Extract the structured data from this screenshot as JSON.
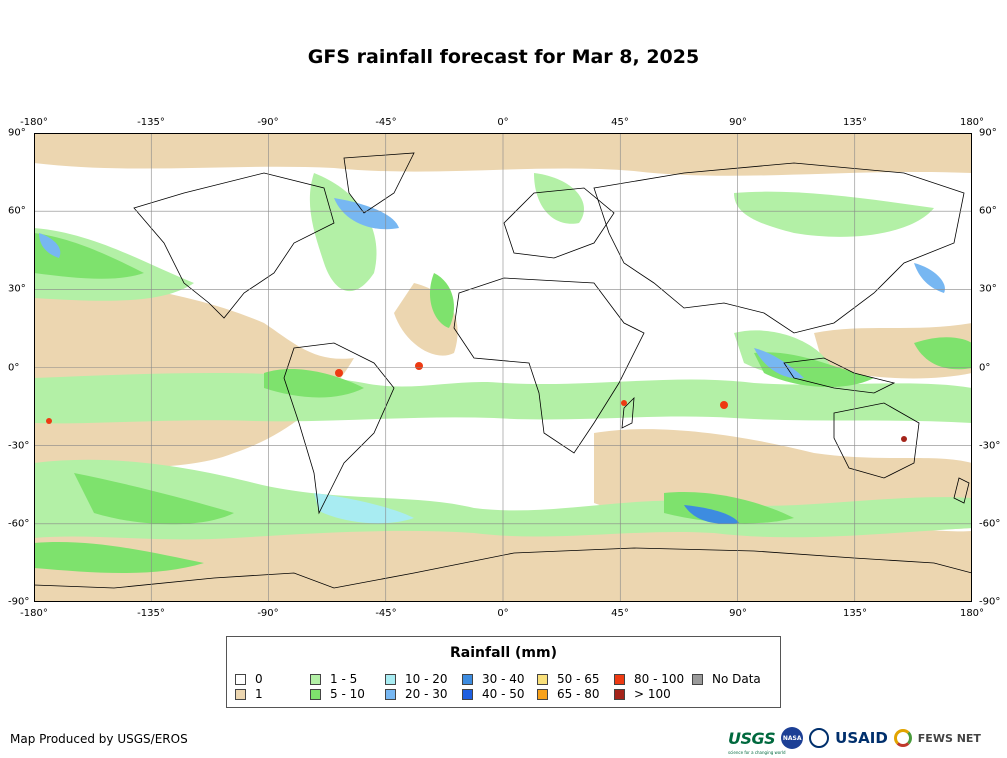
{
  "title": "GFS rainfall forecast for Mar 8, 2025",
  "axes": {
    "lon_ticks": [
      "-180°",
      "-135°",
      "-90°",
      "-45°",
      "0°",
      "45°",
      "90°",
      "135°",
      "180°"
    ],
    "lat_ticks": [
      "90°",
      "60°",
      "30°",
      "0°",
      "-30°",
      "-60°",
      "-90°"
    ]
  },
  "legend": {
    "title": "Rainfall (mm)",
    "items": [
      {
        "label": "0",
        "color": "#ffffff"
      },
      {
        "label": "1",
        "color": "#ecd6b0"
      },
      {
        "label": "1 - 5",
        "color": "#b3f0a6"
      },
      {
        "label": "5 - 10",
        "color": "#7ee26d"
      },
      {
        "label": "10 - 20",
        "color": "#a8ecf2"
      },
      {
        "label": "20 - 30",
        "color": "#77b7f2"
      },
      {
        "label": "30 - 40",
        "color": "#3d8ce0"
      },
      {
        "label": "40 - 50",
        "color": "#1e5fe0"
      },
      {
        "label": "50 - 65",
        "color": "#f9e07a"
      },
      {
        "label": "65 - 80",
        "color": "#f7a11b"
      },
      {
        "label": "80 - 100",
        "color": "#ee3a12"
      },
      {
        "label": "> 100",
        "color": "#a4241a"
      },
      {
        "label": "No Data",
        "color": "#9a9a9a"
      }
    ]
  },
  "credit": "Map Produced by USGS/EROS",
  "logos": {
    "usgs": "USGS",
    "usgs_tagline": "science for a changing world",
    "nasa": "NASA",
    "usaid": "USAID",
    "fews": "FEWS NET"
  }
}
